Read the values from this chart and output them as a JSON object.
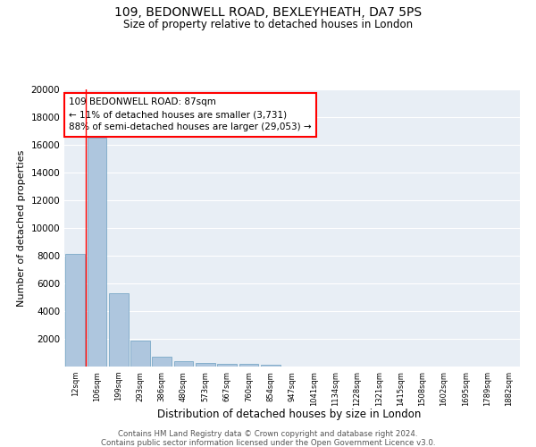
{
  "title1": "109, BEDONWELL ROAD, BEXLEYHEATH, DA7 5PS",
  "title2": "Size of property relative to detached houses in London",
  "xlabel": "Distribution of detached houses by size in London",
  "ylabel": "Number of detached properties",
  "annotation_title": "109 BEDONWELL ROAD: 87sqm",
  "annotation_line2": "← 11% of detached houses are smaller (3,731)",
  "annotation_line3": "88% of semi-detached houses are larger (29,053) →",
  "footer1": "Contains HM Land Registry data © Crown copyright and database right 2024.",
  "footer2": "Contains public sector information licensed under the Open Government Licence v3.0.",
  "bar_categories": [
    "12sqm",
    "106sqm",
    "199sqm",
    "293sqm",
    "386sqm",
    "480sqm",
    "573sqm",
    "667sqm",
    "760sqm",
    "854sqm",
    "947sqm",
    "1041sqm",
    "1134sqm",
    "1228sqm",
    "1321sqm",
    "1415sqm",
    "1508sqm",
    "1602sqm",
    "1695sqm",
    "1789sqm",
    "1882sqm"
  ],
  "bar_values": [
    8100,
    16500,
    5300,
    1850,
    700,
    380,
    280,
    210,
    200,
    160,
    0,
    0,
    0,
    0,
    0,
    0,
    0,
    0,
    0,
    0,
    0
  ],
  "bar_color": "#aec6de",
  "bar_edge_color": "#6a9fc0",
  "vline_x": 0.5,
  "vline_color": "red",
  "background_color": "#e8eef5",
  "grid_color": "#ffffff",
  "ylim": [
    0,
    20000
  ],
  "yticks": [
    0,
    2000,
    4000,
    6000,
    8000,
    10000,
    12000,
    14000,
    16000,
    18000,
    20000
  ]
}
